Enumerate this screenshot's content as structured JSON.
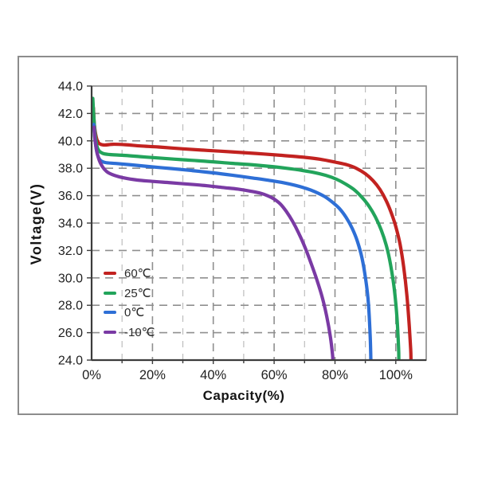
{
  "figure": {
    "background": "#ffffff",
    "border_color": "#8c8c8c"
  },
  "chart_data": {
    "type": "line",
    "title": "",
    "xlabel": "Capacity(%)",
    "ylabel": "Voltage(V)",
    "xlim": [
      0,
      110
    ],
    "ylim": [
      24,
      44
    ],
    "grid": {
      "style": "dashed",
      "major_color": "#8f8f8f",
      "minor_color": "#bdbdbd",
      "x_major_step": 20,
      "x_minor_step": 10,
      "y_major_step": 2
    },
    "x_ticks": [
      {
        "v": 0,
        "label": "0%"
      },
      {
        "v": 20,
        "label": "20%"
      },
      {
        "v": 40,
        "label": "40%"
      },
      {
        "v": 60,
        "label": "60%"
      },
      {
        "v": 80,
        "label": "80%"
      },
      {
        "v": 100,
        "label": "100%"
      }
    ],
    "y_ticks": [
      {
        "v": 44,
        "label": "44.0"
      },
      {
        "v": 42,
        "label": "42.0"
      },
      {
        "v": 40,
        "label": "40.0"
      },
      {
        "v": 38,
        "label": "38.0"
      },
      {
        "v": 36,
        "label": "36.0"
      },
      {
        "v": 34,
        "label": "34.0"
      },
      {
        "v": 32,
        "label": "32.0"
      },
      {
        "v": 30,
        "label": "30.0"
      },
      {
        "v": 28,
        "label": "28.0"
      },
      {
        "v": 26,
        "label": "26.0"
      },
      {
        "v": 24,
        "label": "24.0"
      }
    ],
    "legend": {
      "position": "inside lower-left"
    },
    "series": [
      {
        "name": "60℃",
        "color": "#c22220",
        "points": [
          [
            0.6,
            42.4
          ],
          [
            0.9,
            41.2
          ],
          [
            1.5,
            40.3
          ],
          [
            2.3,
            39.85
          ],
          [
            4,
            39.7
          ],
          [
            7,
            39.75
          ],
          [
            11,
            39.72
          ],
          [
            16,
            39.63
          ],
          [
            22,
            39.55
          ],
          [
            30,
            39.42
          ],
          [
            38,
            39.3
          ],
          [
            46,
            39.2
          ],
          [
            54,
            39.08
          ],
          [
            62,
            38.95
          ],
          [
            69,
            38.82
          ],
          [
            75,
            38.66
          ],
          [
            80,
            38.45
          ],
          [
            84,
            38.25
          ],
          [
            87,
            38.0
          ],
          [
            90,
            37.6
          ],
          [
            92.5,
            37.1
          ],
          [
            94.8,
            36.45
          ],
          [
            96.8,
            35.65
          ],
          [
            98.5,
            34.75
          ],
          [
            100,
            33.75
          ],
          [
            101.4,
            32.45
          ],
          [
            102.6,
            30.8
          ],
          [
            103.6,
            28.8
          ],
          [
            104.4,
            26.6
          ],
          [
            104.9,
            24.8
          ],
          [
            105,
            24
          ]
        ]
      },
      {
        "name": "25℃",
        "color": "#22a45b",
        "points": [
          [
            0.4,
            43.1
          ],
          [
            0.7,
            41.8
          ],
          [
            1.2,
            40.4
          ],
          [
            2,
            39.45
          ],
          [
            3.5,
            39.1
          ],
          [
            6,
            39.0
          ],
          [
            10,
            38.95
          ],
          [
            16,
            38.85
          ],
          [
            22,
            38.75
          ],
          [
            30,
            38.62
          ],
          [
            38,
            38.5
          ],
          [
            46,
            38.36
          ],
          [
            53,
            38.25
          ],
          [
            59,
            38.13
          ],
          [
            64,
            38.0
          ],
          [
            69,
            37.85
          ],
          [
            73,
            37.7
          ],
          [
            77,
            37.48
          ],
          [
            80.5,
            37.2
          ],
          [
            83.5,
            36.85
          ],
          [
            86.5,
            36.4
          ],
          [
            89,
            35.85
          ],
          [
            91.3,
            35.2
          ],
          [
            93.3,
            34.45
          ],
          [
            95.2,
            33.5
          ],
          [
            96.9,
            32.35
          ],
          [
            98.3,
            30.95
          ],
          [
            99.5,
            29.2
          ],
          [
            100.4,
            27.1
          ],
          [
            100.9,
            24.9
          ],
          [
            101,
            24
          ]
        ]
      },
      {
        "name": "0℃",
        "color": "#2e6fd6",
        "points": [
          [
            0.7,
            41.2
          ],
          [
            1.1,
            40.1
          ],
          [
            1.8,
            39.1
          ],
          [
            2.8,
            38.6
          ],
          [
            4.5,
            38.42
          ],
          [
            8,
            38.35
          ],
          [
            13,
            38.25
          ],
          [
            19,
            38.12
          ],
          [
            26,
            37.98
          ],
          [
            33,
            37.83
          ],
          [
            40,
            37.66
          ],
          [
            46,
            37.5
          ],
          [
            52,
            37.32
          ],
          [
            58,
            37.13
          ],
          [
            63,
            36.95
          ],
          [
            67,
            36.75
          ],
          [
            70.5,
            36.53
          ],
          [
            73.5,
            36.28
          ],
          [
            76.5,
            35.95
          ],
          [
            79,
            35.55
          ],
          [
            81.5,
            35.05
          ],
          [
            83.7,
            34.4
          ],
          [
            85.7,
            33.6
          ],
          [
            87.4,
            32.65
          ],
          [
            88.9,
            31.45
          ],
          [
            90.1,
            29.9
          ],
          [
            91,
            28.1
          ],
          [
            91.6,
            25.7
          ],
          [
            91.8,
            24
          ]
        ]
      },
      {
        "name": "-10℃",
        "color": "#7a3aa4",
        "points": [
          [
            0.8,
            41.0
          ],
          [
            1.2,
            39.95
          ],
          [
            2,
            38.95
          ],
          [
            3.2,
            38.25
          ],
          [
            5,
            37.75
          ],
          [
            7.5,
            37.48
          ],
          [
            11,
            37.28
          ],
          [
            15,
            37.14
          ],
          [
            20,
            37.04
          ],
          [
            26,
            36.94
          ],
          [
            32,
            36.84
          ],
          [
            38,
            36.72
          ],
          [
            43,
            36.6
          ],
          [
            48,
            36.48
          ],
          [
            52,
            36.34
          ],
          [
            55.5,
            36.18
          ],
          [
            58,
            35.98
          ],
          [
            60,
            35.75
          ],
          [
            62,
            35.4
          ],
          [
            64,
            34.85
          ],
          [
            66,
            34.15
          ],
          [
            68,
            33.3
          ],
          [
            70,
            32.3
          ],
          [
            72,
            31.15
          ],
          [
            74,
            29.9
          ],
          [
            75.8,
            28.6
          ],
          [
            77.3,
            27.2
          ],
          [
            78.5,
            25.7
          ],
          [
            79.2,
            24.4
          ],
          [
            79.3,
            24
          ]
        ]
      }
    ]
  }
}
